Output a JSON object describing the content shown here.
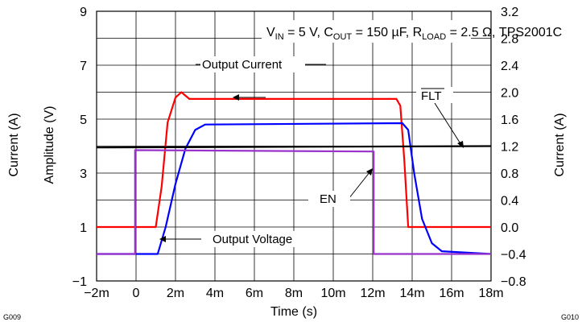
{
  "figure": {
    "condition_line": {
      "vin_main": "V",
      "vin_sub": "IN",
      "vin_val": " = 5 V, ",
      "cout_main": "C",
      "cout_sub": "OUT",
      "cout_val": " = 150 µF, ",
      "rload_main": "R",
      "rload_sub": "LOAD",
      "rload_val": " = 2.5 Ω,  TPS2001C"
    },
    "labels": {
      "output_current": "Output Current",
      "output_voltage": "Output Voltage",
      "en": "EN",
      "flt": "FLT"
    },
    "left_ylabel_outer": "Current (A)",
    "left_ylabel_inner": "Amplitude (V)",
    "right_ylabel": "Current (A)",
    "corner_left": "G009",
    "corner_right": "G010"
  },
  "chart_data": {
    "type": "line",
    "xlabel": "Time (s)",
    "x_ticks": [
      "−2m",
      "0",
      "2m",
      "4m",
      "6m",
      "8m",
      "10m",
      "12m",
      "14m",
      "16m",
      "18m"
    ],
    "xlim": [
      -2,
      18
    ],
    "ylabel": "Amplitude (V)",
    "ylim": [
      -1,
      9
    ],
    "y_ticks": [
      "−1",
      "1",
      "3",
      "5",
      "7",
      "9"
    ],
    "y2label": "Current (A)",
    "y2lim": [
      -0.8,
      3.2
    ],
    "y2_ticks": [
      "−0.8",
      "−0.4",
      "0.0",
      "0.4",
      "0.8",
      "1.2",
      "1.6",
      "2.0",
      "2.4",
      "2.8",
      "3.2"
    ],
    "grid": true,
    "series": [
      {
        "name": "Output Current",
        "color": "#ff0000",
        "x": [
          -2,
          1.0,
          1.3,
          1.6,
          2.0,
          2.3,
          2.7,
          3.2,
          13.2,
          13.4,
          13.6,
          13.8,
          18
        ],
        "y": [
          0.0,
          0.0,
          0.6,
          1.55,
          1.92,
          2.0,
          1.9,
          1.9,
          1.9,
          1.8,
          1.0,
          0.0,
          0.0
        ]
      },
      {
        "name": "Output Voltage",
        "color": "#0000ff",
        "x": [
          -2,
          1.1,
          1.5,
          2.0,
          2.5,
          3.0,
          3.5,
          13.5,
          13.8,
          14.1,
          14.5,
          15.0,
          15.5,
          18
        ],
        "y": [
          0.0,
          0.0,
          1.0,
          2.6,
          3.9,
          4.6,
          4.8,
          4.85,
          4.6,
          3.0,
          1.3,
          0.4,
          0.1,
          0.0
        ]
      },
      {
        "name": "EN",
        "color": "#9933cc",
        "x": [
          -2,
          -0.05,
          -0.05,
          12.05,
          12.05,
          18
        ],
        "y": [
          0.0,
          0.0,
          3.85,
          3.8,
          0.0,
          0.0
        ]
      },
      {
        "name": "FLT",
        "color": "#000000",
        "x": [
          -2,
          18
        ],
        "y": [
          3.95,
          4.0
        ]
      }
    ]
  },
  "colors": {
    "output_current": "#ff0000",
    "output_voltage": "#0000ff",
    "en": "#9933cc",
    "flt": "#000000",
    "grid": "#000000"
  }
}
